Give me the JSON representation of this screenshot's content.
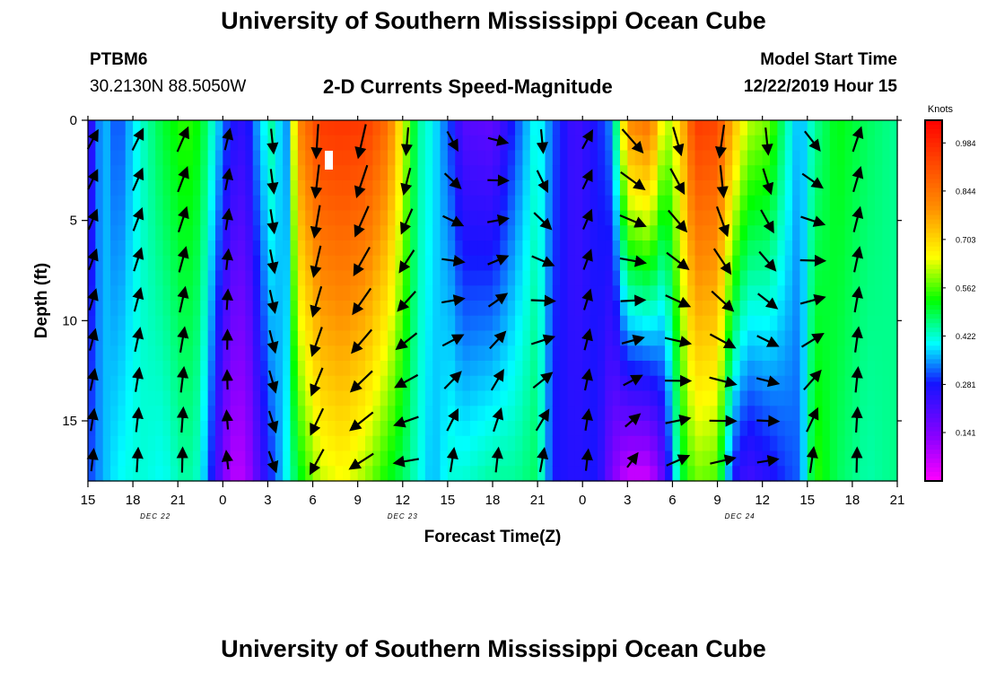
{
  "header": {
    "title": "University of Southern Mississippi Ocean Cube",
    "station_id": "PTBM6",
    "coordinates": "30.2130N 88.5050W",
    "plot_subtitle": "2-D Currents Speed-Magnitude",
    "model_start_label": "Model Start Time",
    "model_start_value": "12/22/2019 Hour 15"
  },
  "footer": {
    "title": "University of Southern Mississippi Ocean Cube"
  },
  "chart_data": {
    "type": "heatmap",
    "title": "2-D Currents Speed-Magnitude",
    "xlabel": "Forecast Time(Z)",
    "ylabel": "Depth (ft)",
    "x_range_hours": [
      0,
      54
    ],
    "x_ticks": [
      {
        "hour": 0,
        "label": "15"
      },
      {
        "hour": 3,
        "label": "18"
      },
      {
        "hour": 6,
        "label": "21"
      },
      {
        "hour": 9,
        "label": "0"
      },
      {
        "hour": 12,
        "label": "3"
      },
      {
        "hour": 15,
        "label": "6"
      },
      {
        "hour": 18,
        "label": "9"
      },
      {
        "hour": 21,
        "label": "12"
      },
      {
        "hour": 24,
        "label": "15"
      },
      {
        "hour": 27,
        "label": "18"
      },
      {
        "hour": 30,
        "label": "21"
      },
      {
        "hour": 33,
        "label": "0"
      },
      {
        "hour": 36,
        "label": "3"
      },
      {
        "hour": 39,
        "label": "6"
      },
      {
        "hour": 42,
        "label": "9"
      },
      {
        "hour": 45,
        "label": "12"
      },
      {
        "hour": 48,
        "label": "15"
      },
      {
        "hour": 51,
        "label": "18"
      },
      {
        "hour": 54,
        "label": "21"
      }
    ],
    "date_labels": [
      {
        "hour": 4.5,
        "label": "DEC 22"
      },
      {
        "hour": 21,
        "label": "DEC 23"
      },
      {
        "hour": 43.5,
        "label": "DEC 24"
      }
    ],
    "y_range_ft": [
      0,
      18
    ],
    "y_ticks": [
      {
        "value": 0,
        "label": "0"
      },
      {
        "value": 5,
        "label": "5"
      },
      {
        "value": 10,
        "label": "10"
      },
      {
        "value": 15,
        "label": "15"
      }
    ],
    "colorbar": {
      "title": "Knots",
      "range": [
        0,
        1.05
      ],
      "tick_labels": [
        "0.984",
        "0.844",
        "0.703",
        "0.562",
        "0.422",
        "0.281",
        "0.141"
      ],
      "tick_values": [
        0.984,
        0.844,
        0.703,
        0.562,
        0.422,
        0.281,
        0.141
      ]
    },
    "speed_keyframes": [
      {
        "h": 0.0,
        "top": 0.22,
        "bot": 0.3
      },
      {
        "h": 1.0,
        "top": 0.38,
        "bot": 0.36
      },
      {
        "h": 2.0,
        "top": 0.3,
        "bot": 0.4
      },
      {
        "h": 3.5,
        "top": 0.42,
        "bot": 0.42
      },
      {
        "h": 5.0,
        "top": 0.5,
        "bot": 0.4
      },
      {
        "h": 6.5,
        "top": 0.55,
        "bot": 0.45
      },
      {
        "h": 7.5,
        "top": 0.52,
        "bot": 0.42
      },
      {
        "h": 8.5,
        "top": 0.4,
        "bot": 0.24
      },
      {
        "h": 9.5,
        "top": 0.28,
        "bot": 0.08
      },
      {
        "h": 10.5,
        "top": 0.25,
        "bot": 0.08
      },
      {
        "h": 11.5,
        "top": 0.38,
        "bot": 0.22
      },
      {
        "h": 12.3,
        "top": 0.45,
        "bot": 0.3
      },
      {
        "h": 13.2,
        "top": 0.32,
        "bot": 0.4
      },
      {
        "h": 14.0,
        "top": 0.8,
        "bot": 0.5
      },
      {
        "h": 15.5,
        "top": 0.95,
        "bot": 0.62
      },
      {
        "h": 17.0,
        "top": 0.96,
        "bot": 0.65
      },
      {
        "h": 18.5,
        "top": 0.95,
        "bot": 0.6
      },
      {
        "h": 20.0,
        "top": 0.85,
        "bot": 0.52
      },
      {
        "h": 21.0,
        "top": 0.65,
        "bot": 0.48
      },
      {
        "h": 22.0,
        "top": 0.45,
        "bot": 0.42
      },
      {
        "h": 23.0,
        "top": 0.4,
        "bot": 0.36
      },
      {
        "h": 24.2,
        "top": 0.3,
        "bot": 0.42
      },
      {
        "h": 25.0,
        "top": 0.2,
        "bot": 0.42
      },
      {
        "h": 27.0,
        "top": 0.18,
        "bot": 0.45
      },
      {
        "h": 28.5,
        "top": 0.3,
        "bot": 0.45
      },
      {
        "h": 30.0,
        "top": 0.42,
        "bot": 0.48
      },
      {
        "h": 31.0,
        "top": 0.32,
        "bot": 0.28
      },
      {
        "h": 32.5,
        "top": 0.22,
        "bot": 0.26
      },
      {
        "h": 34.0,
        "top": 0.28,
        "bot": 0.28
      },
      {
        "h": 35.0,
        "top": 0.35,
        "bot": 0.14
      },
      {
        "h": 36.0,
        "top": 0.8,
        "bot": 0.05
      },
      {
        "h": 37.5,
        "top": 0.85,
        "bot": 0.05
      },
      {
        "h": 38.5,
        "top": 0.6,
        "bot": 0.2
      },
      {
        "h": 39.5,
        "top": 0.7,
        "bot": 0.48
      },
      {
        "h": 40.5,
        "top": 0.95,
        "bot": 0.58
      },
      {
        "h": 42.0,
        "top": 0.93,
        "bot": 0.56
      },
      {
        "h": 43.0,
        "top": 0.75,
        "bot": 0.28
      },
      {
        "h": 44.0,
        "top": 0.62,
        "bot": 0.22
      },
      {
        "h": 45.5,
        "top": 0.58,
        "bot": 0.26
      },
      {
        "h": 46.5,
        "top": 0.45,
        "bot": 0.3
      },
      {
        "h": 47.5,
        "top": 0.35,
        "bot": 0.32
      },
      {
        "h": 48.5,
        "top": 0.45,
        "bot": 0.55
      },
      {
        "h": 50.0,
        "top": 0.52,
        "bot": 0.48
      },
      {
        "h": 52.0,
        "top": 0.48,
        "bot": 0.44
      },
      {
        "h": 54.0,
        "top": 0.45,
        "bot": 0.46
      }
    ],
    "vector_directions_deg_from_north": [
      {
        "h": 0.0,
        "top": 30,
        "bot": 5
      },
      {
        "h": 2.5,
        "top": 28,
        "bot": 2
      },
      {
        "h": 5.5,
        "top": 25,
        "bot": 0
      },
      {
        "h": 8.5,
        "top": 15,
        "bot": -8
      },
      {
        "h": 11.5,
        "top": 175,
        "bot": 160
      },
      {
        "h": 13.5,
        "top": 170,
        "bot": 150
      },
      {
        "h": 15.0,
        "top": 182,
        "bot": 210
      },
      {
        "h": 18.0,
        "top": 190,
        "bot": 240
      },
      {
        "h": 20.5,
        "top": 180,
        "bot": 265
      },
      {
        "h": 23.5,
        "top": 160,
        "bot": 0
      },
      {
        "h": 27.0,
        "top": 110,
        "bot": 0
      },
      {
        "h": 30.0,
        "top": 185,
        "bot": 0
      },
      {
        "h": 33.0,
        "top": 30,
        "bot": 5
      },
      {
        "h": 36.0,
        "top": 145,
        "bot": 30
      },
      {
        "h": 39.0,
        "top": 170,
        "bot": 60
      },
      {
        "h": 42.0,
        "top": 195,
        "bot": 70
      },
      {
        "h": 45.0,
        "top": 180,
        "bot": 75
      },
      {
        "h": 48.0,
        "top": 150,
        "bot": 0
      },
      {
        "h": 51.0,
        "top": 20,
        "bot": 0
      },
      {
        "h": 54.0,
        "top": 0,
        "bot": 0
      }
    ]
  }
}
